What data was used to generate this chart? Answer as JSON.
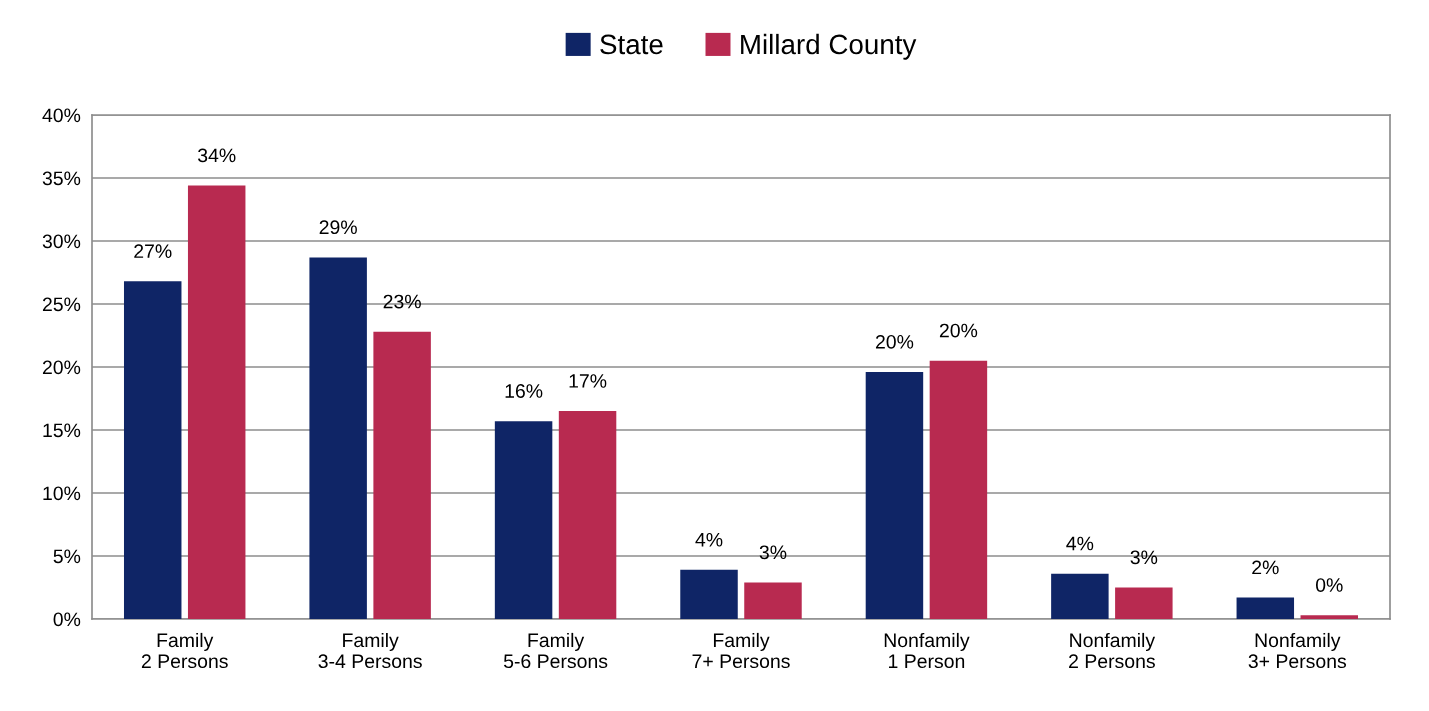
{
  "chart_data": {
    "type": "bar",
    "categories": [
      "Family\n2 Persons",
      "Family\n3-4 Persons",
      "Family\n5-6 Persons",
      "Family\n7+ Persons",
      "Nonfamily\n1 Person",
      "Nonfamily\n2 Persons",
      "Nonfamily\n3+ Persons"
    ],
    "series": [
      {
        "name": "State",
        "color": "#0f2566",
        "values": [
          26.8,
          28.7,
          15.7,
          3.9,
          19.6,
          3.6,
          1.7
        ],
        "value_labels": [
          "27%",
          "29%",
          "16%",
          "4%",
          "20%",
          "4%",
          "2%"
        ]
      },
      {
        "name": "Millard County",
        "color": "#b82a50",
        "values": [
          34.4,
          22.8,
          16.5,
          2.9,
          20.5,
          2.5,
          0.3
        ],
        "value_labels": [
          "34%",
          "23%",
          "17%",
          "3%",
          "20%",
          "3%",
          "0%"
        ]
      }
    ],
    "ylim": [
      0,
      40
    ],
    "yticks": [
      {
        "value": 0,
        "label": "0%"
      },
      {
        "value": 5,
        "label": "5%"
      },
      {
        "value": 10,
        "label": "10%"
      },
      {
        "value": 15,
        "label": "15%"
      },
      {
        "value": 20,
        "label": "20%"
      },
      {
        "value": 25,
        "label": "25%"
      },
      {
        "value": 30,
        "label": "30%"
      },
      {
        "value": 35,
        "label": "35%"
      },
      {
        "value": 40,
        "label": "40%"
      }
    ],
    "grid": "y",
    "legend": "top"
  }
}
